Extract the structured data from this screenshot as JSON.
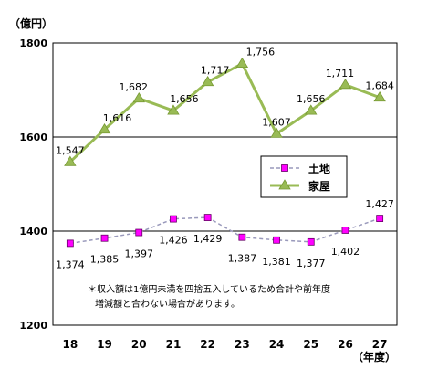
{
  "chart_data": {
    "type": "line",
    "unit_label": "（億円）",
    "x_unit_label": "（年度）",
    "categories": [
      "18",
      "19",
      "20",
      "21",
      "22",
      "23",
      "24",
      "25",
      "26",
      "27"
    ],
    "ylim": [
      1200,
      1800
    ],
    "yticks": [
      1200,
      1400,
      1600,
      1800
    ],
    "grid": {
      "horizontal": true,
      "lines": [
        1400,
        1600
      ]
    },
    "legend_position": "inside-right",
    "series": [
      {
        "name": "土地",
        "color": "#ff00ff",
        "line_color": "#9999bb",
        "dashed": true,
        "marker": "square",
        "values": [
          1374,
          1385,
          1397,
          1426,
          1429,
          1387,
          1381,
          1377,
          1402,
          1427
        ],
        "labels": [
          "1,374",
          "1,385",
          "1,397",
          "1,426",
          "1,429",
          "1,387",
          "1,381",
          "1,377",
          "1,402",
          "1,427"
        ]
      },
      {
        "name": "家屋",
        "color": "#99bb55",
        "line_color": "#99bb55",
        "dashed": false,
        "marker": "triangle",
        "values": [
          1547,
          1616,
          1682,
          1656,
          1717,
          1756,
          1607,
          1656,
          1711,
          1684
        ],
        "labels": [
          "1,547",
          "1,616",
          "1,682",
          "1,656",
          "1,717",
          "1,756",
          "1,607",
          "1,656",
          "1,711",
          "1,684"
        ]
      }
    ],
    "annotation": [
      "＊収入額は1億円未満を四捨五入しているため合計や前年度",
      "増減額と合わない場合があります。"
    ]
  }
}
